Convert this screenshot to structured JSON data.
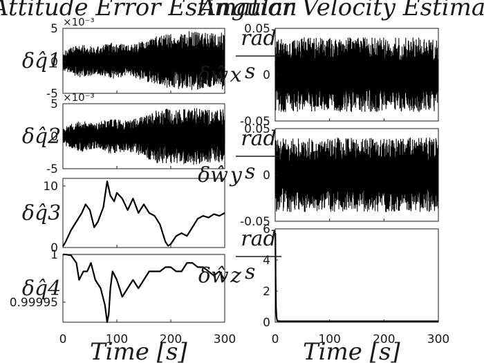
{
  "figure": {
    "titles": {
      "left": "Attitude Error Estimation",
      "right": "Angular Velocity Estimation Error"
    },
    "xlabels": {
      "left": "Time [s]",
      "right": "Time [s]"
    }
  },
  "chart_data": [
    {
      "type": "line",
      "ylabel": "δq̂1",
      "multiplier": "×10⁻³",
      "ylim": [
        -5,
        5
      ],
      "yticks": [
        "5",
        "0",
        "-5"
      ],
      "xlim": [
        0,
        300
      ],
      "xticks": [
        "0",
        "100",
        "200",
        "300"
      ],
      "show_xticks": false,
      "series": [
        {
          "signal": "oscillation",
          "x": [
            0,
            30,
            60,
            90,
            120,
            150,
            180,
            210,
            240,
            270,
            300
          ],
          "envelope": [
            1.4,
            2.6,
            2.1,
            2.8,
            2.4,
            3.0,
            4.0,
            4.3,
            4.6,
            4.2,
            4.4
          ]
        }
      ]
    },
    {
      "type": "line",
      "ylabel": "δq̂2",
      "multiplier": "×10⁻³",
      "ylim": [
        -5,
        5
      ],
      "yticks": [
        "5",
        "0",
        "-5"
      ],
      "xlim": [
        0,
        300
      ],
      "xticks": [
        "0",
        "100",
        "200",
        "300"
      ],
      "show_xticks": false,
      "series": [
        {
          "signal": "oscillation",
          "x": [
            0,
            30,
            60,
            90,
            120,
            150,
            180,
            210,
            240,
            270,
            300
          ],
          "envelope": [
            1.3,
            2.4,
            2.0,
            2.7,
            2.3,
            3.2,
            4.3,
            4.2,
            4.4,
            4.0,
            4.1
          ]
        }
      ]
    },
    {
      "type": "line",
      "ylabel": "δq̂3",
      "ylim": [
        0,
        12
      ],
      "yticks": [
        "10",
        "0"
      ],
      "xlim": [
        0,
        300
      ],
      "xticks": [
        "0",
        "100",
        "200",
        "300"
      ],
      "show_xticks": false,
      "series": [
        {
          "x": [
            0,
            5,
            15,
            25,
            35,
            42,
            50,
            58,
            65,
            75,
            82,
            88,
            95,
            100,
            110,
            120,
            130,
            140,
            150,
            160,
            170,
            180,
            190,
            195,
            200,
            210,
            220,
            230,
            240,
            250,
            260,
            270,
            280,
            290,
            300
          ],
          "y": [
            0.2,
            1.0,
            3.0,
            4.5,
            6.0,
            7.5,
            6.5,
            3.5,
            4.5,
            7.0,
            11.5,
            9.0,
            8.0,
            9.5,
            8.5,
            6.5,
            8.5,
            6.0,
            7.5,
            6.0,
            5.5,
            4.0,
            1.0,
            0.3,
            0.6,
            2.0,
            2.5,
            2.0,
            3.5,
            5.0,
            5.5,
            5.2,
            5.8,
            5.5,
            6.0
          ]
        }
      ]
    },
    {
      "type": "line",
      "ylabel": "δq̂4",
      "ylim": [
        0.99992,
        1.0
      ],
      "yticks": [
        "1",
        "0.99995"
      ],
      "xlim": [
        0,
        300
      ],
      "xticks": [
        "0",
        "100",
        "200",
        "300"
      ],
      "show_xticks": true,
      "series": [
        {
          "x": [
            0,
            5,
            15,
            25,
            30,
            38,
            45,
            52,
            60,
            70,
            78,
            82,
            85,
            88,
            92,
            100,
            110,
            120,
            130,
            140,
            150,
            160,
            170,
            180,
            190,
            200,
            210,
            220,
            230,
            240,
            250,
            260,
            270,
            280,
            290,
            300
          ],
          "y": [
            1.0,
            1.0,
            0.999999,
            0.99999,
            0.99997,
            0.99998,
            0.99998,
            0.99999,
            0.99997,
            0.99996,
            0.99994,
            0.99992,
            0.99993,
            0.99996,
            0.99998,
            0.99997,
            0.99995,
            0.99996,
            0.99997,
            0.99996,
            0.99997,
            0.99998,
            0.99998,
            0.99998,
            0.999985,
            0.999985,
            0.99998,
            0.99998,
            0.99999,
            0.99999,
            0.999985,
            0.999985,
            0.99998,
            0.999975,
            0.99998,
            0.99997
          ]
        }
      ]
    },
    {
      "type": "line",
      "ylabel": "δŵx",
      "unit_top": "rad",
      "unit_bottom": "s",
      "ylim": [
        -0.05,
        0.05
      ],
      "yticks": [
        "0.05",
        "0",
        "-0.05"
      ],
      "xlim": [
        0,
        300
      ],
      "xticks": [
        "0",
        "100",
        "200",
        "300"
      ],
      "show_xticks": false,
      "series": [
        {
          "signal": "oscillation",
          "x": [
            0,
            300
          ],
          "envelope": [
            0.04,
            0.04
          ]
        }
      ]
    },
    {
      "type": "line",
      "ylabel": "δŵy",
      "unit_top": "rad",
      "unit_bottom": "s",
      "ylim": [
        -0.05,
        0.05
      ],
      "yticks": [
        "0.05",
        "0",
        "-0.05"
      ],
      "xlim": [
        0,
        300
      ],
      "xticks": [
        "0",
        "100",
        "200",
        "300"
      ],
      "show_xticks": false,
      "series": [
        {
          "signal": "oscillation",
          "x": [
            0,
            300
          ],
          "envelope": [
            0.04,
            0.04
          ]
        }
      ]
    },
    {
      "type": "line",
      "ylabel": "δŵz",
      "unit_top": "rad",
      "unit_bottom": "s",
      "ylim": [
        0,
        6
      ],
      "yticks": [
        "6",
        "4",
        "2",
        "0"
      ],
      "xlim": [
        0,
        300
      ],
      "xticks": [
        "0",
        "100",
        "200",
        "300"
      ],
      "show_xticks": true,
      "series": [
        {
          "x": [
            0,
            0.3,
            0.8,
            1.5,
            2.5,
            4,
            10,
            100,
            200,
            300
          ],
          "y": [
            5.7,
            5.7,
            3.0,
            1.0,
            0.3,
            0.08,
            0.06,
            0.06,
            0.06,
            0.06
          ]
        }
      ]
    }
  ]
}
